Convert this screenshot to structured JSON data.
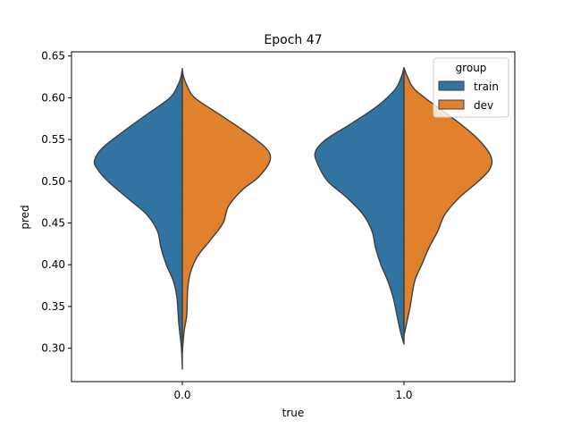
{
  "chart_data": {
    "type": "violin",
    "title": "Epoch 47",
    "xlabel": "true",
    "ylabel": "pred",
    "ylim": [
      0.26,
      0.655
    ],
    "y_ticks": [
      "0.30",
      "0.35",
      "0.40",
      "0.45",
      "0.50",
      "0.55",
      "0.60",
      "0.65"
    ],
    "categories": [
      "0.0",
      "1.0"
    ],
    "legend": {
      "title": "group",
      "placement": "top-right",
      "entries": [
        "train",
        "dev"
      ]
    },
    "colors": {
      "train": "#3274a1",
      "dev": "#e1812c",
      "outline": "#3f3f3f"
    },
    "split": true,
    "series": [
      {
        "name": "train",
        "side": "left",
        "violins": [
          {
            "category": "0.0",
            "density_profile": [
              [
                0.275,
                0.0
              ],
              [
                0.3,
                0.01
              ],
              [
                0.33,
                0.04
              ],
              [
                0.36,
                0.06
              ],
              [
                0.38,
                0.1
              ],
              [
                0.4,
                0.18
              ],
              [
                0.42,
                0.24
              ],
              [
                0.44,
                0.28
              ],
              [
                0.46,
                0.4
              ],
              [
                0.48,
                0.62
              ],
              [
                0.5,
                0.84
              ],
              [
                0.515,
                0.96
              ],
              [
                0.525,
                0.99
              ],
              [
                0.54,
                0.9
              ],
              [
                0.56,
                0.66
              ],
              [
                0.58,
                0.4
              ],
              [
                0.6,
                0.14
              ],
              [
                0.615,
                0.05
              ],
              [
                0.625,
                0.015
              ],
              [
                0.635,
                0.0
              ]
            ]
          },
          {
            "category": "1.0",
            "density_profile": [
              [
                0.305,
                0.0
              ],
              [
                0.32,
                0.04
              ],
              [
                0.34,
                0.08
              ],
              [
                0.36,
                0.12
              ],
              [
                0.38,
                0.18
              ],
              [
                0.4,
                0.26
              ],
              [
                0.42,
                0.32
              ],
              [
                0.44,
                0.36
              ],
              [
                0.46,
                0.46
              ],
              [
                0.48,
                0.64
              ],
              [
                0.5,
                0.86
              ],
              [
                0.52,
                0.97
              ],
              [
                0.535,
                1.0
              ],
              [
                0.55,
                0.88
              ],
              [
                0.57,
                0.58
              ],
              [
                0.59,
                0.3
              ],
              [
                0.61,
                0.1
              ],
              [
                0.625,
                0.03
              ],
              [
                0.636,
                0.0
              ]
            ]
          }
        ]
      },
      {
        "name": "dev",
        "side": "right",
        "violins": [
          {
            "category": "0.0",
            "density_profile": [
              [
                0.295,
                0.0
              ],
              [
                0.32,
                0.02
              ],
              [
                0.34,
                0.05
              ],
              [
                0.37,
                0.06
              ],
              [
                0.39,
                0.09
              ],
              [
                0.41,
                0.17
              ],
              [
                0.43,
                0.32
              ],
              [
                0.45,
                0.46
              ],
              [
                0.47,
                0.52
              ],
              [
                0.49,
                0.68
              ],
              [
                0.505,
                0.86
              ],
              [
                0.525,
                0.99
              ],
              [
                0.54,
                0.94
              ],
              [
                0.56,
                0.7
              ],
              [
                0.58,
                0.42
              ],
              [
                0.6,
                0.14
              ],
              [
                0.615,
                0.05
              ],
              [
                0.625,
                0.015
              ],
              [
                0.633,
                0.0
              ]
            ]
          },
          {
            "category": "1.0",
            "density_profile": [
              [
                0.315,
                0.0
              ],
              [
                0.33,
                0.03
              ],
              [
                0.35,
                0.07
              ],
              [
                0.38,
                0.12
              ],
              [
                0.4,
                0.2
              ],
              [
                0.42,
                0.28
              ],
              [
                0.44,
                0.38
              ],
              [
                0.46,
                0.46
              ],
              [
                0.48,
                0.62
              ],
              [
                0.5,
                0.84
              ],
              [
                0.515,
                0.97
              ],
              [
                0.53,
                0.98
              ],
              [
                0.55,
                0.84
              ],
              [
                0.57,
                0.62
              ],
              [
                0.59,
                0.36
              ],
              [
                0.61,
                0.12
              ],
              [
                0.625,
                0.04
              ],
              [
                0.636,
                0.0
              ]
            ]
          }
        ]
      }
    ]
  }
}
